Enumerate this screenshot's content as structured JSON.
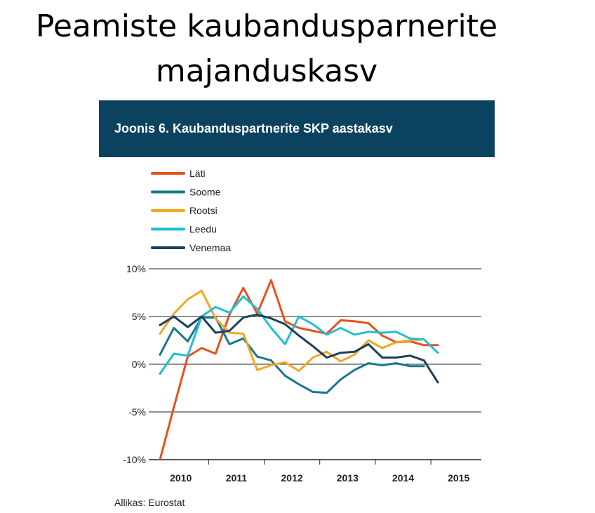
{
  "slide": {
    "title_line1": "Peamiste kaubandusparnerite",
    "title_line2": "majanduskasv"
  },
  "chart_banner": "Joonis 6. Kaubanduspartnerite SKP aastakasv",
  "source": "Allikas: Eurostat",
  "chart_data": {
    "type": "line",
    "title": "Joonis 6. Kaubanduspartnerite SKP aastakasv",
    "xlabel": "",
    "ylabel": "",
    "ylim": [
      -10,
      10
    ],
    "yticks": [
      10,
      5,
      0,
      -5,
      -10
    ],
    "ytick_labels": [
      "10%",
      "5%",
      "0%",
      "-5%",
      "-10%"
    ],
    "x_quarters": [
      "2010 Q1",
      "2010 Q2",
      "2010 Q3",
      "2010 Q4",
      "2011 Q1",
      "2011 Q2",
      "2011 Q3",
      "2011 Q4",
      "2012 Q1",
      "2012 Q2",
      "2012 Q3",
      "2012 Q4",
      "2013 Q1",
      "2013 Q2",
      "2013 Q3",
      "2013 Q4",
      "2014 Q1",
      "2014 Q2",
      "2014 Q3",
      "2014 Q4",
      "2015 Q1"
    ],
    "year_labels": [
      "2010",
      "2011",
      "2012",
      "2013",
      "2014",
      "2015"
    ],
    "grid": true,
    "legend_position": "top-left",
    "series": [
      {
        "name": "Läti",
        "color": "#e8501c",
        "values": [
          -10.0,
          -4.5,
          0.8,
          1.7,
          1.1,
          5.2,
          8.0,
          5.3,
          8.8,
          4.5,
          3.8,
          3.5,
          3.2,
          4.6,
          4.5,
          4.3,
          3.0,
          2.3,
          2.4,
          2.0,
          2.0
        ]
      },
      {
        "name": "Soome",
        "color": "#147a8c",
        "values": [
          1.0,
          3.8,
          2.4,
          4.9,
          4.9,
          2.1,
          2.7,
          0.8,
          0.4,
          -1.2,
          -2.1,
          -2.9,
          -3.0,
          -1.6,
          -0.6,
          0.1,
          -0.1,
          0.1,
          -0.2,
          -0.2,
          null
        ]
      },
      {
        "name": "Rootsi",
        "color": "#f5a623",
        "values": [
          3.2,
          5.3,
          6.8,
          7.7,
          4.8,
          3.3,
          3.2,
          -0.6,
          -0.1,
          0.2,
          -0.7,
          0.7,
          1.3,
          0.3,
          1.0,
          2.5,
          1.7,
          2.3,
          2.5,
          2.6,
          null
        ]
      },
      {
        "name": "Leedu",
        "color": "#1ec0d2",
        "values": [
          -1.0,
          1.1,
          0.9,
          5.0,
          6.0,
          5.4,
          7.1,
          5.8,
          3.8,
          2.1,
          5.0,
          4.2,
          3.1,
          3.8,
          3.1,
          3.4,
          3.3,
          3.4,
          2.7,
          2.6,
          1.2
        ]
      },
      {
        "name": "Venemaa",
        "color": "#1e3f5a",
        "values": [
          4.1,
          5.0,
          3.9,
          5.0,
          3.3,
          3.5,
          4.9,
          5.2,
          4.8,
          4.2,
          3.0,
          1.9,
          0.7,
          1.2,
          1.3,
          2.1,
          0.7,
          0.7,
          0.9,
          0.4,
          -1.9
        ]
      }
    ]
  }
}
